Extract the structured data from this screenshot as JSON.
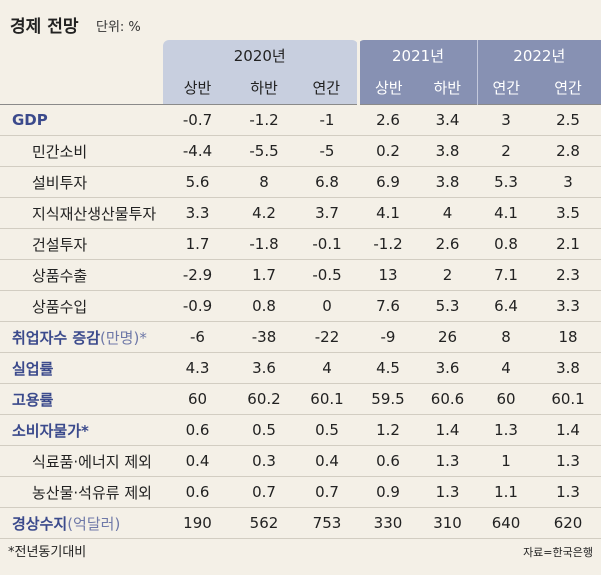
{
  "header": {
    "title": "경제 전망",
    "unit": "단위: %"
  },
  "table": {
    "years": [
      "2020년",
      "2021년",
      "2022년"
    ],
    "columns": [
      "상반",
      "하반",
      "연간",
      "상반",
      "하반",
      "연간",
      "연간"
    ],
    "rows": [
      {
        "label": "GDP",
        "values": [
          "-0.7",
          "-1.2",
          "-1",
          "2.6",
          "3.4",
          "3",
          "2.5"
        ]
      },
      {
        "label": "민간소비",
        "values": [
          "-4.4",
          "-5.5",
          "-5",
          "0.2",
          "3.8",
          "2",
          "2.8"
        ]
      },
      {
        "label": "설비투자",
        "values": [
          "5.6",
          "8",
          "6.8",
          "6.9",
          "3.8",
          "5.3",
          "3"
        ]
      },
      {
        "label": "지식재산생산물투자",
        "values": [
          "3.3",
          "4.2",
          "3.7",
          "4.1",
          "4",
          "4.1",
          "3.5"
        ]
      },
      {
        "label": "건설투자",
        "values": [
          "1.7",
          "-1.8",
          "-0.1",
          "-1.2",
          "2.6",
          "0.8",
          "2.1"
        ]
      },
      {
        "label": "상품수출",
        "values": [
          "-2.9",
          "1.7",
          "-0.5",
          "13",
          "2",
          "7.1",
          "2.3"
        ]
      },
      {
        "label": "상품수입",
        "values": [
          "-0.9",
          "0.8",
          "0",
          "7.6",
          "5.3",
          "6.4",
          "3.3"
        ]
      },
      {
        "label": "취업자수 증감",
        "unit": "(만명)*",
        "values": [
          "-6",
          "-38",
          "-22",
          "-9",
          "26",
          "8",
          "18"
        ]
      },
      {
        "label": "실업률",
        "values": [
          "4.3",
          "3.6",
          "4",
          "4.5",
          "3.6",
          "4",
          "3.8"
        ]
      },
      {
        "label": "고용률",
        "values": [
          "60",
          "60.2",
          "60.1",
          "59.5",
          "60.6",
          "60",
          "60.1"
        ]
      },
      {
        "label": "소비자물가*",
        "values": [
          "0.6",
          "0.5",
          "0.5",
          "1.2",
          "1.4",
          "1.3",
          "1.4"
        ]
      },
      {
        "label": "식료품·에너지 제외",
        "values": [
          "0.4",
          "0.3",
          "0.4",
          "0.6",
          "1.3",
          "1",
          "1.3"
        ]
      },
      {
        "label": "농산물·석유류 제외",
        "values": [
          "0.6",
          "0.7",
          "0.7",
          "0.9",
          "1.3",
          "1.1",
          "1.3"
        ]
      },
      {
        "label": "경상수지",
        "unit": "(억달러)",
        "values": [
          "190",
          "562",
          "753",
          "330",
          "310",
          "640",
          "620"
        ]
      }
    ]
  },
  "footer": {
    "note": "*전년동기대비",
    "source": "자료=한국은행"
  }
}
